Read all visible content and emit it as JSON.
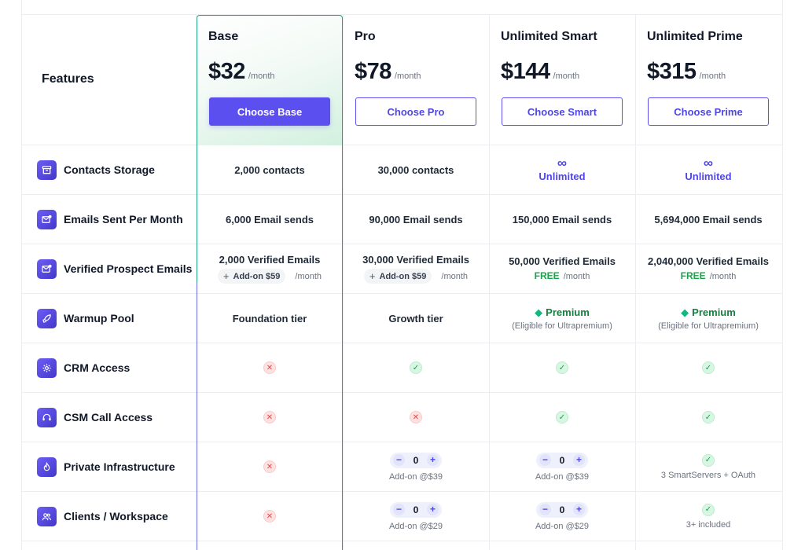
{
  "features_title": "Features",
  "plans": [
    {
      "name": "Base",
      "price": "$32",
      "period": "/month",
      "button": "Choose Base"
    },
    {
      "name": "Pro",
      "price": "$78",
      "period": "/month",
      "button": "Choose Pro"
    },
    {
      "name": "Unlimited Smart",
      "price": "$144",
      "period": "/month",
      "button": "Choose Smart"
    },
    {
      "name": "Unlimited Prime",
      "price": "$315",
      "period": "/month",
      "button": "Choose Prime"
    }
  ],
  "features": [
    {
      "label": "Contacts Storage",
      "icon": "archive-icon"
    },
    {
      "label": "Emails Sent Per Month",
      "icon": "mail-send-icon"
    },
    {
      "label": "Verified Prospect Emails",
      "icon": "mail-check-icon"
    },
    {
      "label": "Warmup Pool",
      "icon": "rocket-icon"
    },
    {
      "label": "CRM Access",
      "icon": "gear-icon"
    },
    {
      "label": "CSM Call Access",
      "icon": "headset-icon"
    },
    {
      "label": "Private Infrastructure",
      "icon": "flame-icon"
    },
    {
      "label": "Clients / Workspace",
      "icon": "users-icon"
    }
  ],
  "symbols": {
    "infinity": "∞",
    "check": "✓",
    "cross": "✕",
    "gem": "◆",
    "plus": "+",
    "minus": "−"
  },
  "rows": {
    "contacts": {
      "base": "2,000 contacts",
      "pro": "30,000 contacts",
      "smart": "Unlimited",
      "prime": "Unlimited"
    },
    "emails": {
      "base": "6,000 Email sends",
      "pro": "90,000 Email sends",
      "smart": "150,000 Email sends",
      "prime": "5,694,000 Email sends"
    },
    "verified": {
      "base": "2,000 Verified Emails",
      "base_addon": "Add-on $59",
      "pro": "30,000 Verified Emails",
      "pro_addon": "Add-on $59",
      "smart": "50,000 Verified Emails",
      "prime": "2,040,000 Verified Emails",
      "free": "FREE",
      "month": "/month"
    },
    "warmup": {
      "base": "Foundation tier",
      "pro": "Growth tier",
      "premium": "Premium",
      "premium_sub": "(Eligible for Ultrapremium)"
    },
    "private_infra": {
      "stepper_value": "0",
      "addon": "Add-on @$39",
      "prime": "3 SmartServers + OAuth"
    },
    "clients": {
      "stepper_value": "0",
      "addon": "Add-on @$29",
      "prime": "3+ included"
    }
  },
  "colors": {
    "accent": "#5b4ff0",
    "highlight_border": "#1ea37e",
    "check": "#16a34a",
    "cross": "#ef4444"
  }
}
